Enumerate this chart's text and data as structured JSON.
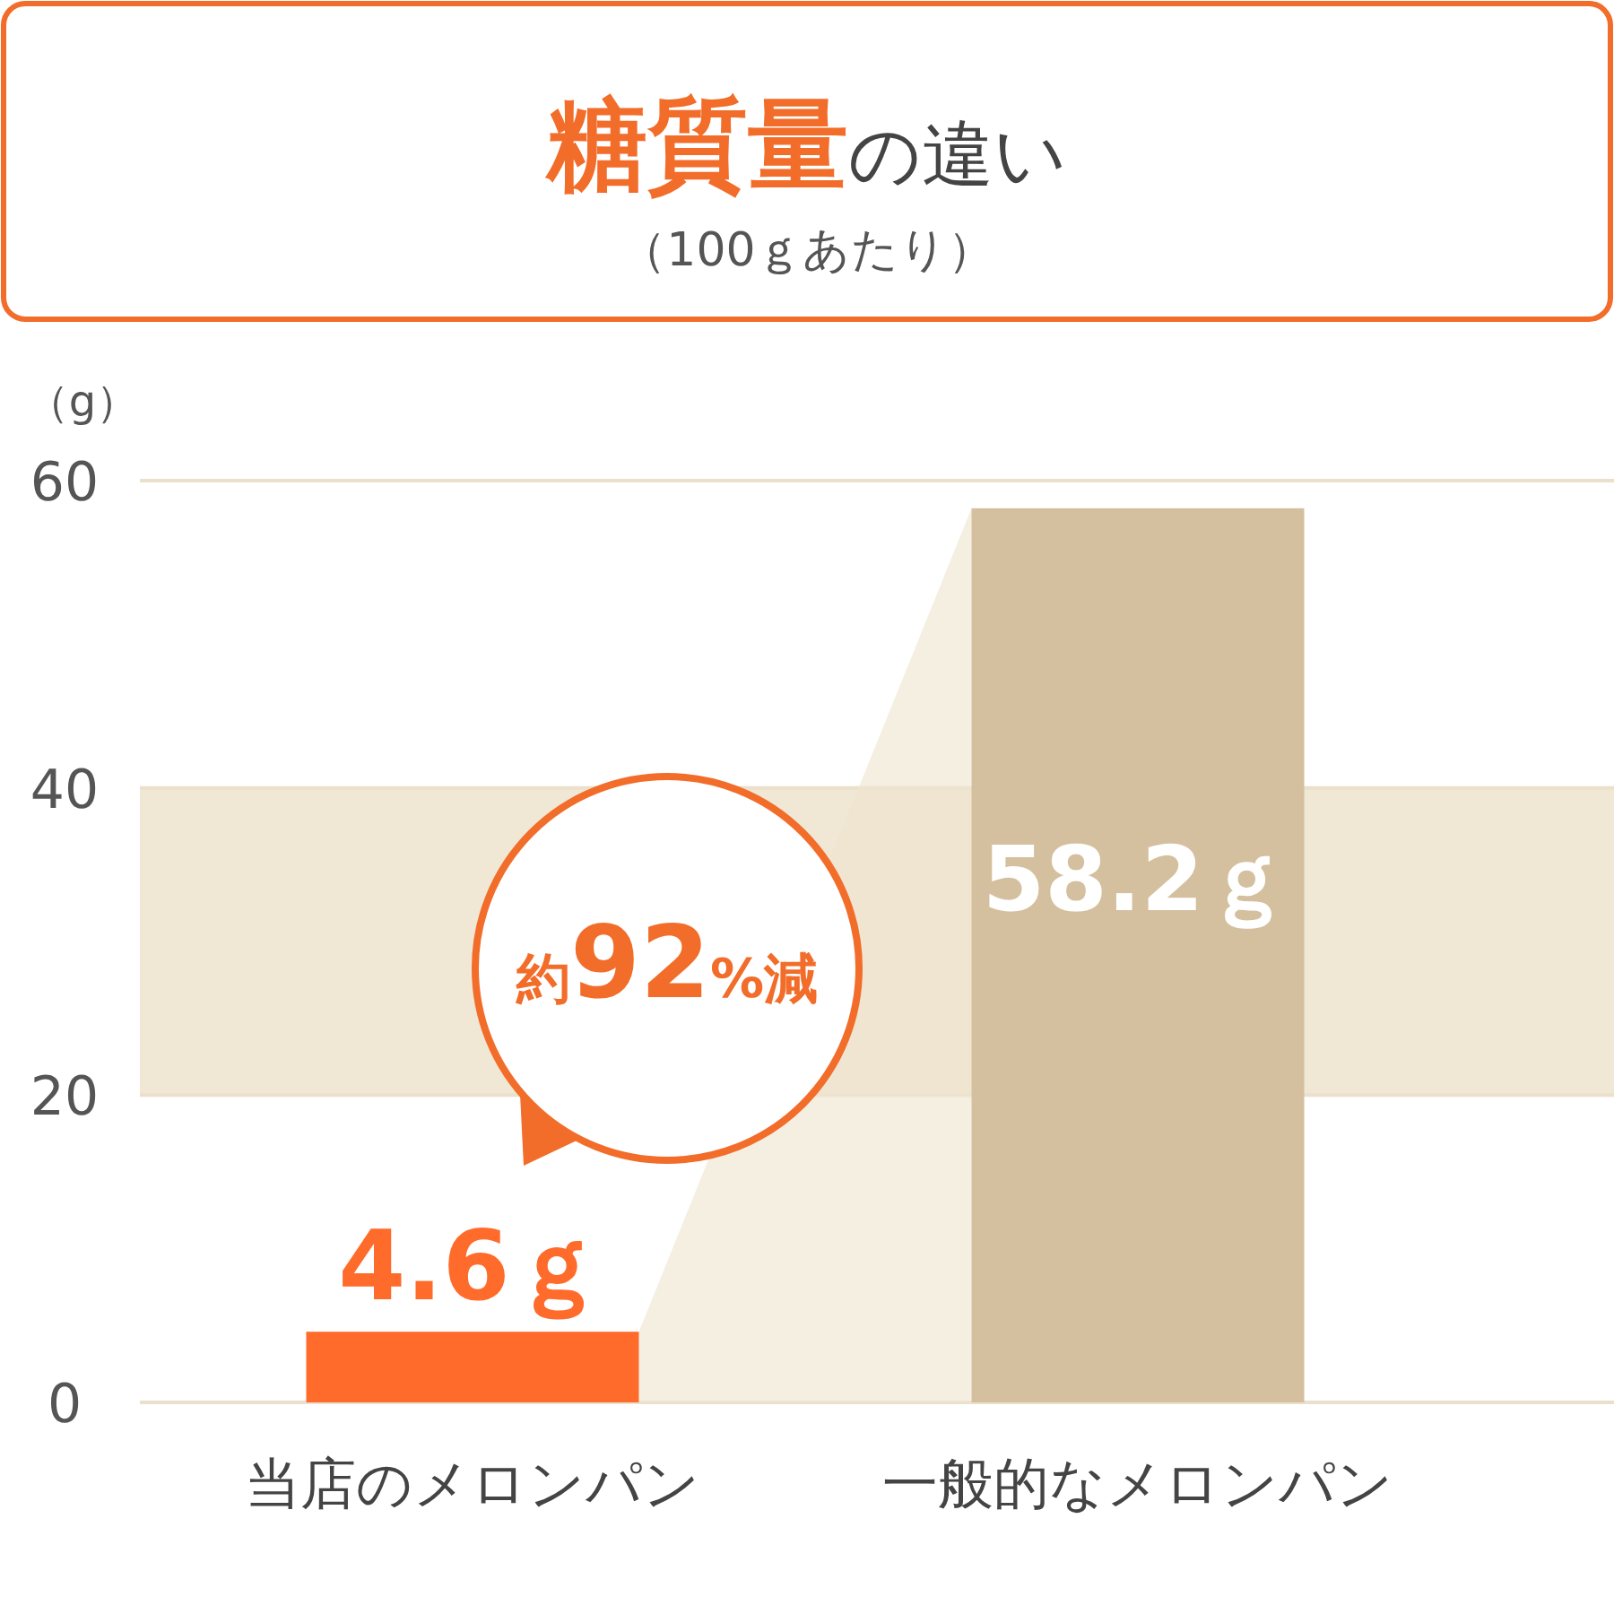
{
  "chart_data": {
    "type": "bar",
    "title": "**糖質量**の違い",
    "subtitle": "（100ｇあたり）",
    "ylabel": "（g）",
    "categories": [
      "当店のメロンパン",
      "一般的なメロンパン"
    ],
    "values": [
      4.6,
      58.2
    ],
    "colors": [
      "#ff6b2b",
      "#d4c09e"
    ],
    "value_labels": [
      "4.6ｇ",
      "58.2ｇ"
    ],
    "ylim": [
      0,
      60
    ],
    "yticks": [
      0,
      20,
      40,
      60
    ],
    "grid": "y",
    "bands": [
      {
        "axis": "y",
        "from": 20,
        "to": 40,
        "color": "#f0e7d5"
      }
    ],
    "annotations": [
      "約**92**%減"
    ]
  }
}
